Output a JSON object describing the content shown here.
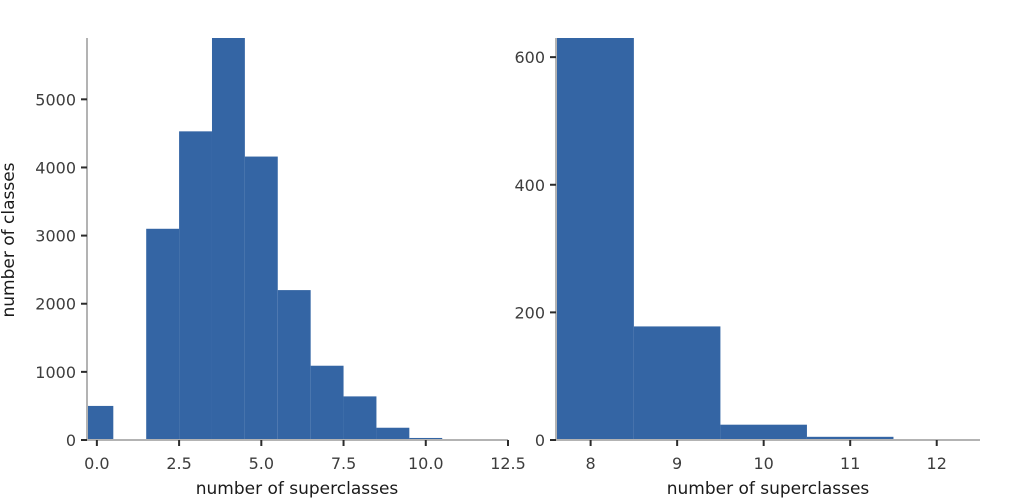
{
  "colors": {
    "bar": "#3465a4",
    "axis": "#b3b3b3",
    "tick": "#2b2b2b",
    "text": "#3d3d3d"
  },
  "chart_data": [
    {
      "type": "bar",
      "xlabel": "number of superclasses",
      "ylabel": "number of classes",
      "xlim": [
        -0.3,
        12.5
      ],
      "ylim": [
        0,
        5900
      ],
      "x_ticks": [
        0.0,
        2.5,
        5.0,
        7.5,
        10.0,
        12.5
      ],
      "x_tick_labels": [
        "0.0",
        "2.5",
        "5.0",
        "7.5",
        "10.0",
        "12.5"
      ],
      "y_ticks": [
        0,
        1000,
        2000,
        3000,
        4000,
        5000
      ],
      "y_tick_labels": [
        "0",
        "1000",
        "2000",
        "3000",
        "4000",
        "5000"
      ],
      "bar_width": 1,
      "x": [
        0,
        1,
        2,
        3,
        4,
        5,
        6,
        7,
        8,
        9,
        10
      ],
      "values": [
        500,
        0,
        3100,
        4530,
        5900,
        4160,
        2200,
        1090,
        640,
        180,
        30
      ]
    },
    {
      "type": "bar",
      "xlabel": "number of superclasses",
      "ylabel": "",
      "xlim": [
        7.6,
        12.5
      ],
      "ylim": [
        0,
        630
      ],
      "x_ticks": [
        8,
        9,
        10,
        11,
        12
      ],
      "x_tick_labels": [
        "8",
        "9",
        "10",
        "11",
        "12"
      ],
      "y_ticks": [
        0,
        200,
        400,
        600
      ],
      "y_tick_labels": [
        "0",
        "200",
        "400",
        "600"
      ],
      "bar_width": 1,
      "x": [
        8,
        9,
        10,
        11
      ],
      "values": [
        640,
        178,
        24,
        5
      ]
    }
  ]
}
